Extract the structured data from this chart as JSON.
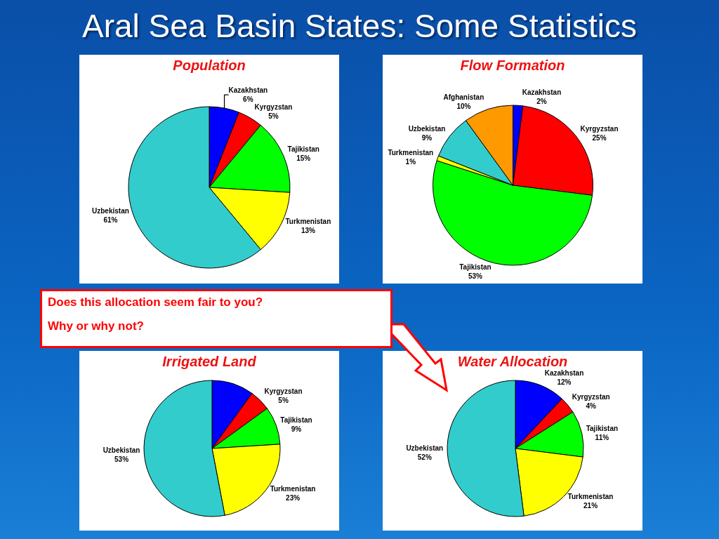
{
  "chart_data": [
    {
      "type": "other",
      "title": "Aral Sea Basin States: Some Statistics",
      "annotations": [
        "Does this allocation seem fair to you?",
        "Why or why not?"
      ]
    },
    {
      "type": "pie",
      "title": "Population",
      "categories": [
        "Kazakhstan",
        "Kyrgyzstan",
        "Tajikistan",
        "Turkmenistan",
        "Uzbekistan"
      ],
      "values": [
        6,
        5,
        15,
        13,
        61
      ],
      "value_labels": [
        "6%",
        "5%",
        "15%",
        "13%",
        "61%"
      ],
      "colors": [
        "#0000ff",
        "#ff0000",
        "#00ff00",
        "#ffff00",
        "#33cccc"
      ]
    },
    {
      "type": "pie",
      "title": "Flow Formation",
      "categories": [
        "Kazakhstan",
        "Kyrgyzstan",
        "Tajikistan",
        "Turkmenistan",
        "Uzbekistan",
        "Afghanistan"
      ],
      "values": [
        2,
        25,
        53,
        1,
        9,
        10
      ],
      "value_labels": [
        "2%",
        "25%",
        "53%",
        "1%",
        "9%",
        "10%"
      ],
      "colors": [
        "#0000ff",
        "#ff0000",
        "#00ff00",
        "#ffff00",
        "#33cccc",
        "#ff9900"
      ]
    },
    {
      "type": "pie",
      "title": "Irrigated Land",
      "categories": [
        null,
        "Kyrgyzstan",
        "Tajikistan",
        "Turkmenistan",
        "Uzbekistan"
      ],
      "values": [
        10,
        5,
        9,
        23,
        53
      ],
      "value_labels": [
        null,
        "5%",
        "9%",
        "23%",
        "53%"
      ],
      "colors": [
        "#0000ff",
        "#ff0000",
        "#00ff00",
        "#ffff00",
        "#33cccc"
      ]
    },
    {
      "type": "pie",
      "title": "Water Allocation",
      "categories": [
        "Kazakhstan",
        "Kyrgyzstan",
        "Tajikistan",
        "Turkmenistan",
        "Uzbekistan"
      ],
      "values": [
        12,
        4,
        11,
        21,
        52
      ],
      "value_labels": [
        "12%",
        "4%",
        "11%",
        "21%",
        "52%"
      ],
      "colors": [
        "#0000ff",
        "#ff0000",
        "#00ff00",
        "#ffff00",
        "#33cccc"
      ]
    }
  ]
}
